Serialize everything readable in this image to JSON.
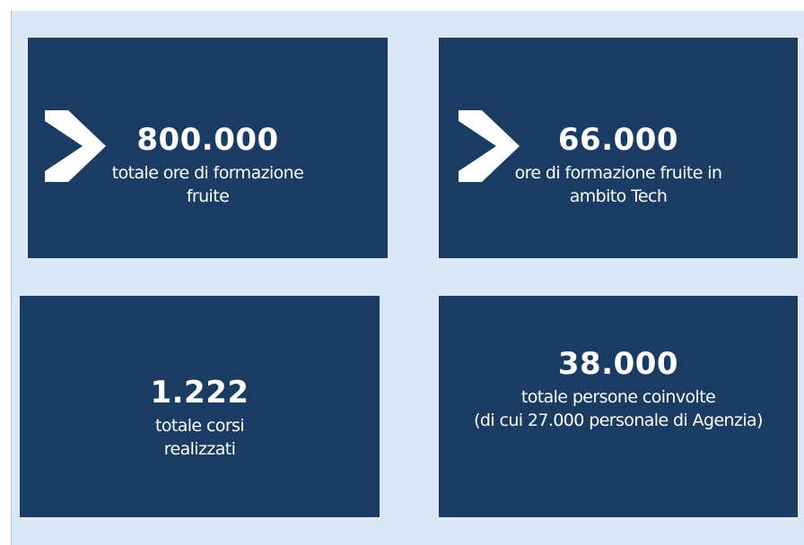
{
  "cards": [
    {
      "value": "800.000",
      "lines": [
        "totale ore di formazione",
        "fruite"
      ]
    },
    {
      "value": "66.000",
      "lines": [
        "ore di formazione fruite in",
        "ambito Tech"
      ]
    },
    {
      "value": "1.222",
      "lines": [
        "totale corsi",
        "realizzati"
      ]
    },
    {
      "value": "38.000",
      "lines": [
        "totale persone coinvolte",
        "(di cui 27.000  personale di Agenzia)"
      ]
    }
  ]
}
